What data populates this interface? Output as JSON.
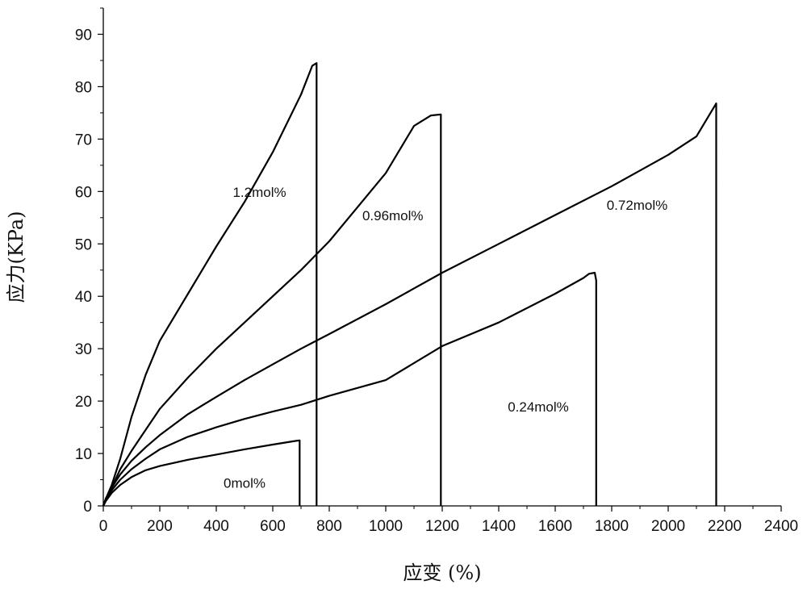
{
  "chart_data": {
    "type": "line",
    "xlabel": "应变 (%)",
    "ylabel": "应力(KPa)",
    "xlim": [
      0,
      2400
    ],
    "ylim": [
      0,
      95
    ],
    "xticks": [
      "0",
      "200",
      "400",
      "600",
      "800",
      "1000",
      "1200",
      "1400",
      "1600",
      "1800",
      "2000",
      "2200",
      "2400"
    ],
    "yticks": [
      "0",
      "10",
      "20",
      "30",
      "40",
      "50",
      "60",
      "70",
      "80",
      "90"
    ],
    "line_color": "#000000",
    "series": [
      {
        "name": "0mol%",
        "label_at": [
          500,
          3.5
        ],
        "points": [
          [
            0,
            0
          ],
          [
            10,
            1
          ],
          [
            30,
            2.5
          ],
          [
            60,
            4
          ],
          [
            100,
            5.5
          ],
          [
            150,
            6.8
          ],
          [
            200,
            7.6
          ],
          [
            300,
            8.8
          ],
          [
            400,
            9.8
          ],
          [
            500,
            10.8
          ],
          [
            600,
            11.7
          ],
          [
            680,
            12.4
          ],
          [
            695,
            12.5
          ],
          [
            695,
            0
          ]
        ]
      },
      {
        "name": "0.24mol%",
        "label_at": [
          1540,
          18
        ],
        "points": [
          [
            0,
            0
          ],
          [
            10,
            1.5
          ],
          [
            30,
            3
          ],
          [
            60,
            5
          ],
          [
            100,
            7
          ],
          [
            150,
            9
          ],
          [
            200,
            10.8
          ],
          [
            300,
            13.2
          ],
          [
            400,
            15
          ],
          [
            500,
            16.6
          ],
          [
            600,
            18
          ],
          [
            700,
            19.3
          ],
          [
            800,
            21
          ],
          [
            1000,
            24
          ],
          [
            1200,
            30.5
          ],
          [
            1400,
            35
          ],
          [
            1600,
            40.5
          ],
          [
            1700,
            43.5
          ],
          [
            1720,
            44.3
          ],
          [
            1740,
            44.5
          ],
          [
            1745,
            43
          ],
          [
            1745,
            0
          ]
        ]
      },
      {
        "name": "0.72mol%",
        "label_at": [
          1890,
          56.5
        ],
        "points": [
          [
            0,
            0
          ],
          [
            10,
            1.5
          ],
          [
            30,
            3.5
          ],
          [
            60,
            6
          ],
          [
            100,
            8.6
          ],
          [
            150,
            11.2
          ],
          [
            200,
            13.5
          ],
          [
            300,
            17.5
          ],
          [
            400,
            20.8
          ],
          [
            500,
            24
          ],
          [
            600,
            27
          ],
          [
            700,
            30
          ],
          [
            800,
            32.8
          ],
          [
            1000,
            38.5
          ],
          [
            1200,
            44.5
          ],
          [
            1400,
            50
          ],
          [
            1600,
            55.5
          ],
          [
            1800,
            61
          ],
          [
            2000,
            67
          ],
          [
            2100,
            70.5
          ],
          [
            2170,
            76.8
          ],
          [
            2170,
            0
          ]
        ]
      },
      {
        "name": "0.96mol%",
        "label_at": [
          1025,
          54.5
        ],
        "points": [
          [
            0,
            0
          ],
          [
            10,
            1.5
          ],
          [
            30,
            3.5
          ],
          [
            60,
            7
          ],
          [
            100,
            10.5
          ],
          [
            150,
            14.5
          ],
          [
            200,
            18.5
          ],
          [
            300,
            24.5
          ],
          [
            400,
            30
          ],
          [
            500,
            35
          ],
          [
            600,
            40
          ],
          [
            700,
            45
          ],
          [
            800,
            50.5
          ],
          [
            900,
            57
          ],
          [
            1000,
            63.5
          ],
          [
            1100,
            72.5
          ],
          [
            1160,
            74.5
          ],
          [
            1195,
            74.7
          ],
          [
            1195,
            0
          ]
        ]
      },
      {
        "name": "1.2mol%",
        "label_at": [
          553,
          59
        ],
        "points": [
          [
            0,
            0
          ],
          [
            10,
            1.5
          ],
          [
            30,
            4
          ],
          [
            60,
            9
          ],
          [
            100,
            17
          ],
          [
            150,
            25
          ],
          [
            200,
            31.5
          ],
          [
            300,
            40.5
          ],
          [
            400,
            49.5
          ],
          [
            500,
            58
          ],
          [
            600,
            67.5
          ],
          [
            700,
            78.5
          ],
          [
            740,
            84
          ],
          [
            755,
            84.5
          ],
          [
            755,
            0
          ]
        ]
      }
    ]
  }
}
